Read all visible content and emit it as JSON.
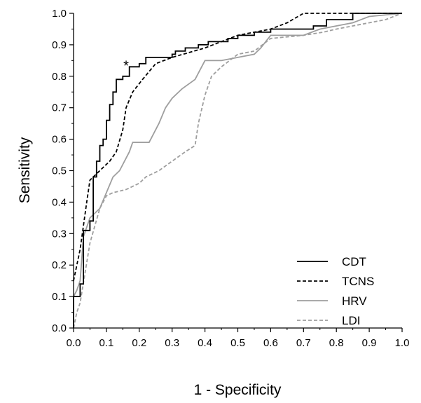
{
  "chart_data": {
    "type": "line",
    "title": "",
    "xlabel": "1 - Specificity",
    "ylabel": "Sensitivity",
    "xlim": [
      0,
      1
    ],
    "ylim": [
      0,
      1
    ],
    "x_ticks": [
      "0.0",
      "0.1",
      "0.2",
      "0.3",
      "0.4",
      "0.5",
      "0.6",
      "0.7",
      "0.8",
      "0.9",
      "1.0"
    ],
    "y_ticks": [
      "0.0",
      "0.1",
      "0.2",
      "0.3",
      "0.4",
      "0.5",
      "0.6",
      "0.7",
      "0.8",
      "0.9",
      "1.0"
    ],
    "grid": false,
    "legend_position": "bottom-right",
    "annotation": {
      "text": "*",
      "x": 0.16,
      "y": 0.845
    },
    "series": [
      {
        "name": "CDT",
        "color": "#000000",
        "dash": "solid",
        "points": [
          [
            0,
            0
          ],
          [
            0,
            0.1
          ],
          [
            0.02,
            0.1
          ],
          [
            0.02,
            0.14
          ],
          [
            0.03,
            0.14
          ],
          [
            0.03,
            0.31
          ],
          [
            0.05,
            0.31
          ],
          [
            0.05,
            0.34
          ],
          [
            0.06,
            0.34
          ],
          [
            0.06,
            0.48
          ],
          [
            0.07,
            0.48
          ],
          [
            0.07,
            0.53
          ],
          [
            0.08,
            0.53
          ],
          [
            0.08,
            0.58
          ],
          [
            0.09,
            0.58
          ],
          [
            0.09,
            0.6
          ],
          [
            0.1,
            0.6
          ],
          [
            0.1,
            0.66
          ],
          [
            0.11,
            0.66
          ],
          [
            0.11,
            0.71
          ],
          [
            0.12,
            0.71
          ],
          [
            0.12,
            0.75
          ],
          [
            0.13,
            0.75
          ],
          [
            0.13,
            0.79
          ],
          [
            0.15,
            0.79
          ],
          [
            0.15,
            0.8
          ],
          [
            0.17,
            0.8
          ],
          [
            0.17,
            0.83
          ],
          [
            0.2,
            0.83
          ],
          [
            0.2,
            0.84
          ],
          [
            0.22,
            0.84
          ],
          [
            0.22,
            0.86
          ],
          [
            0.3,
            0.86
          ],
          [
            0.3,
            0.87
          ],
          [
            0.31,
            0.87
          ],
          [
            0.31,
            0.88
          ],
          [
            0.34,
            0.88
          ],
          [
            0.34,
            0.89
          ],
          [
            0.38,
            0.89
          ],
          [
            0.38,
            0.9
          ],
          [
            0.41,
            0.9
          ],
          [
            0.41,
            0.91
          ],
          [
            0.47,
            0.91
          ],
          [
            0.47,
            0.92
          ],
          [
            0.5,
            0.92
          ],
          [
            0.5,
            0.93
          ],
          [
            0.55,
            0.93
          ],
          [
            0.55,
            0.94
          ],
          [
            0.6,
            0.94
          ],
          [
            0.6,
            0.95
          ],
          [
            0.73,
            0.95
          ],
          [
            0.73,
            0.96
          ],
          [
            0.77,
            0.96
          ],
          [
            0.77,
            0.98
          ],
          [
            0.85,
            0.98
          ],
          [
            0.85,
            1
          ],
          [
            1,
            1
          ]
        ]
      },
      {
        "name": "TCNS",
        "color": "#000000",
        "dash": "dashed",
        "points": [
          [
            0,
            0.15
          ],
          [
            0.01,
            0.2
          ],
          [
            0.02,
            0.25
          ],
          [
            0.04,
            0.4
          ],
          [
            0.05,
            0.47
          ],
          [
            0.08,
            0.5
          ],
          [
            0.11,
            0.53
          ],
          [
            0.13,
            0.56
          ],
          [
            0.15,
            0.63
          ],
          [
            0.16,
            0.7
          ],
          [
            0.18,
            0.75
          ],
          [
            0.21,
            0.79
          ],
          [
            0.25,
            0.84
          ],
          [
            0.3,
            0.86
          ],
          [
            0.4,
            0.89
          ],
          [
            0.5,
            0.93
          ],
          [
            0.6,
            0.95
          ],
          [
            0.65,
            0.97
          ],
          [
            0.7,
            1
          ],
          [
            1,
            1
          ]
        ]
      },
      {
        "name": "HRV",
        "color": "#9e9e9e",
        "dash": "solid",
        "points": [
          [
            0,
            0.1
          ],
          [
            0.01,
            0.12
          ],
          [
            0.02,
            0.15
          ],
          [
            0.03,
            0.29
          ],
          [
            0.05,
            0.35
          ],
          [
            0.08,
            0.38
          ],
          [
            0.1,
            0.43
          ],
          [
            0.12,
            0.48
          ],
          [
            0.14,
            0.5
          ],
          [
            0.17,
            0.56
          ],
          [
            0.18,
            0.59
          ],
          [
            0.23,
            0.59
          ],
          [
            0.26,
            0.65
          ],
          [
            0.28,
            0.7
          ],
          [
            0.3,
            0.73
          ],
          [
            0.33,
            0.76
          ],
          [
            0.37,
            0.79
          ],
          [
            0.39,
            0.83
          ],
          [
            0.4,
            0.85
          ],
          [
            0.45,
            0.85
          ],
          [
            0.5,
            0.86
          ],
          [
            0.55,
            0.87
          ],
          [
            0.57,
            0.89
          ],
          [
            0.6,
            0.93
          ],
          [
            0.7,
            0.93
          ],
          [
            0.75,
            0.95
          ],
          [
            0.8,
            0.96
          ],
          [
            0.85,
            0.97
          ],
          [
            0.9,
            0.99
          ],
          [
            1,
            1
          ]
        ]
      },
      {
        "name": "LDI",
        "color": "#9e9e9e",
        "dash": "dashed",
        "points": [
          [
            0,
            0
          ],
          [
            0.01,
            0.05
          ],
          [
            0.02,
            0.08
          ],
          [
            0.05,
            0.27
          ],
          [
            0.08,
            0.38
          ],
          [
            0.1,
            0.42
          ],
          [
            0.12,
            0.43
          ],
          [
            0.16,
            0.44
          ],
          [
            0.2,
            0.46
          ],
          [
            0.22,
            0.48
          ],
          [
            0.26,
            0.5
          ],
          [
            0.3,
            0.53
          ],
          [
            0.34,
            0.56
          ],
          [
            0.37,
            0.58
          ],
          [
            0.38,
            0.65
          ],
          [
            0.4,
            0.74
          ],
          [
            0.42,
            0.8
          ],
          [
            0.45,
            0.83
          ],
          [
            0.5,
            0.87
          ],
          [
            0.55,
            0.88
          ],
          [
            0.6,
            0.92
          ],
          [
            0.7,
            0.93
          ],
          [
            0.76,
            0.94
          ],
          [
            0.8,
            0.95
          ],
          [
            0.85,
            0.96
          ],
          [
            0.9,
            0.97
          ],
          [
            0.95,
            0.98
          ],
          [
            1,
            1
          ]
        ]
      }
    ]
  }
}
